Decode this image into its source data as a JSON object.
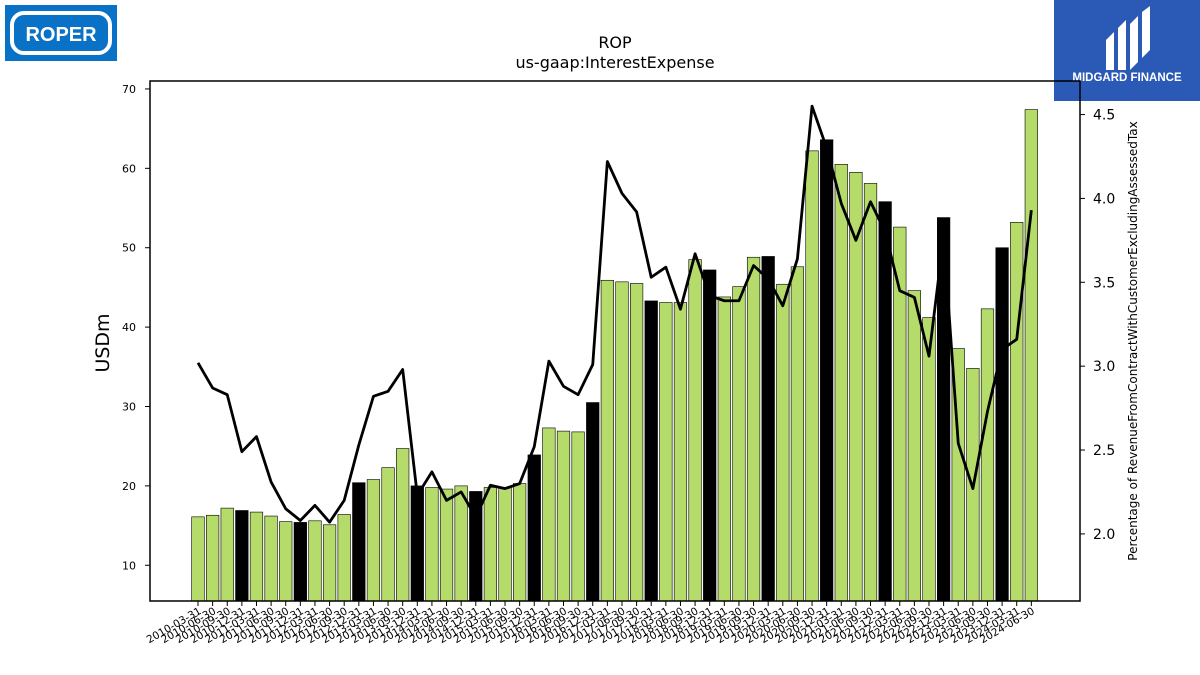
{
  "logos": {
    "company_text": "ROPER",
    "company_color": "#0a72c6",
    "broker_text": "MIDGARD FINANCE",
    "broker_color": "#2b59b6"
  },
  "colors": {
    "bar_normal": "#b5dc6a",
    "bar_q4": "#000000",
    "line": "#000000"
  },
  "chart_data": {
    "type": "bar",
    "title": "ROP",
    "subtitle": "us-gaap:InterestExpense",
    "ylabel": "USDm",
    "y2label": "Percentage of RevenueFromContractWithCustomerExcludingAssessedTax",
    "ylim": [
      5.5,
      71
    ],
    "y2lim": [
      1.6,
      4.7
    ],
    "yticks": [
      10,
      20,
      30,
      40,
      50,
      60,
      70
    ],
    "y2ticks": [
      2.0,
      2.5,
      3.0,
      3.5,
      4.0,
      4.5
    ],
    "y2tick_labels": [
      "2.0",
      "2.5",
      "3.0",
      "3.5",
      "4.0",
      "4.5"
    ],
    "legend": "none",
    "grid": false,
    "categories": [
      "2010-03-31",
      "2010-06-30",
      "2010-09-30",
      "2010-12-31",
      "2011-03-31",
      "2011-06-30",
      "2011-09-30",
      "2011-12-31",
      "2012-03-31",
      "2012-06-30",
      "2012-09-30",
      "2012-12-31",
      "2013-03-31",
      "2013-06-30",
      "2013-09-30",
      "2013-12-31",
      "2014-03-31",
      "2014-06-30",
      "2014-09-30",
      "2014-12-31",
      "2015-03-31",
      "2015-06-30",
      "2015-09-30",
      "2015-12-31",
      "2016-03-31",
      "2016-06-30",
      "2016-09-30",
      "2016-12-31",
      "2017-03-31",
      "2017-06-30",
      "2017-09-30",
      "2017-12-31",
      "2018-03-31",
      "2018-06-30",
      "2018-09-30",
      "2018-12-31",
      "2019-03-31",
      "2019-06-30",
      "2019-09-30",
      "2019-12-31",
      "2020-03-31",
      "2020-06-30",
      "2020-09-30",
      "2020-12-31",
      "2021-03-31",
      "2021-06-30",
      "2021-09-30",
      "2021-12-31",
      "2022-03-31",
      "2022-06-30",
      "2022-09-30",
      "2022-12-31",
      "2023-03-31",
      "2023-06-30",
      "2023-09-30",
      "2023-12-31",
      "2024-03-31",
      "2024-06-30"
    ],
    "tick_labels": [
      "2010-03-31",
      "2010-06-30",
      "2010-09-30",
      "2010-12-31",
      "2011-03-31",
      "2011-06-30",
      "2011-09-30",
      "2011-12-31",
      "2012-03-31",
      "2012-06-30",
      "2012-09-30",
      "2012-12-31",
      "2013-03-31",
      "2013-06-30",
      "2013-09-30",
      "2013-12-31",
      "2014-03-31",
      "2014-06-30",
      "2014-09-30",
      "2014-12-31",
      "2015-03-31",
      "2015-06-30",
      "2015-09-30",
      "2015-12-31",
      "2016-03-31",
      "2016-06-30",
      "2016-09-30",
      "2016-12-31",
      "2017-03-31",
      "2017-06-30",
      "2017-09-30",
      "2017-12-31",
      "2018-03-31",
      "2018-06-30",
      "2018-09-30",
      "2018-12-31",
      "2019-03-31",
      "2019-06-30",
      "2019-09-30",
      "2019-12-31",
      "2020-03-31",
      "2020-06-30",
      "2020-09-30",
      "2020-12-31",
      "2021-03-31",
      "2021-06-30",
      "2021-09-30",
      "2021-12-31",
      "2022-03-31",
      "2022-06-30",
      "2022-09-30",
      "2022-12-31",
      "2023-03-31",
      "2023-06-30",
      "2023-09-30",
      "2023-12-31",
      "2024-03-31",
      "2024-06-30"
    ],
    "bars": [
      16.1,
      16.3,
      17.2,
      16.9,
      16.7,
      16.2,
      15.5,
      15.4,
      15.6,
      15.1,
      16.4,
      20.4,
      20.8,
      22.3,
      24.7,
      20.0,
      19.8,
      19.6,
      20.0,
      19.3,
      19.8,
      19.8,
      20.3,
      23.9,
      27.3,
      26.9,
      26.8,
      30.5,
      45.9,
      45.7,
      45.5,
      43.3,
      43.1,
      43.1,
      48.5,
      47.2,
      43.8,
      45.1,
      48.8,
      48.9,
      45.4,
      47.6,
      62.2,
      63.6,
      60.5,
      59.5,
      58.1,
      55.8,
      52.6,
      44.6,
      41.2,
      53.8,
      37.3,
      34.8,
      42.3,
      50.0,
      53.2,
      67.4
    ],
    "bar_highlight": [
      false,
      false,
      false,
      true,
      false,
      false,
      false,
      true,
      false,
      false,
      false,
      true,
      false,
      false,
      false,
      true,
      false,
      false,
      false,
      true,
      false,
      false,
      false,
      true,
      false,
      false,
      false,
      true,
      false,
      false,
      false,
      true,
      false,
      false,
      false,
      true,
      false,
      false,
      false,
      true,
      false,
      false,
      false,
      true,
      false,
      false,
      false,
      true,
      false,
      false,
      false,
      true,
      false,
      false,
      false,
      true,
      false,
      false
    ],
    "line": [
      3.02,
      2.87,
      2.83,
      2.49,
      2.58,
      2.31,
      2.15,
      2.08,
      2.17,
      2.07,
      2.2,
      2.53,
      2.82,
      2.85,
      2.98,
      2.23,
      2.37,
      2.2,
      2.25,
      2.1,
      2.29,
      2.27,
      2.3,
      2.52,
      3.03,
      2.88,
      2.83,
      3.01,
      4.22,
      4.03,
      3.92,
      3.53,
      3.59,
      3.34,
      3.67,
      3.42,
      3.39,
      3.39,
      3.6,
      3.52,
      3.36,
      3.64,
      4.55,
      4.3,
      3.97,
      3.75,
      3.98,
      3.8,
      3.45,
      3.41,
      3.06,
      3.77,
      2.54,
      2.27,
      2.73,
      3.1,
      3.16,
      3.93
    ]
  }
}
